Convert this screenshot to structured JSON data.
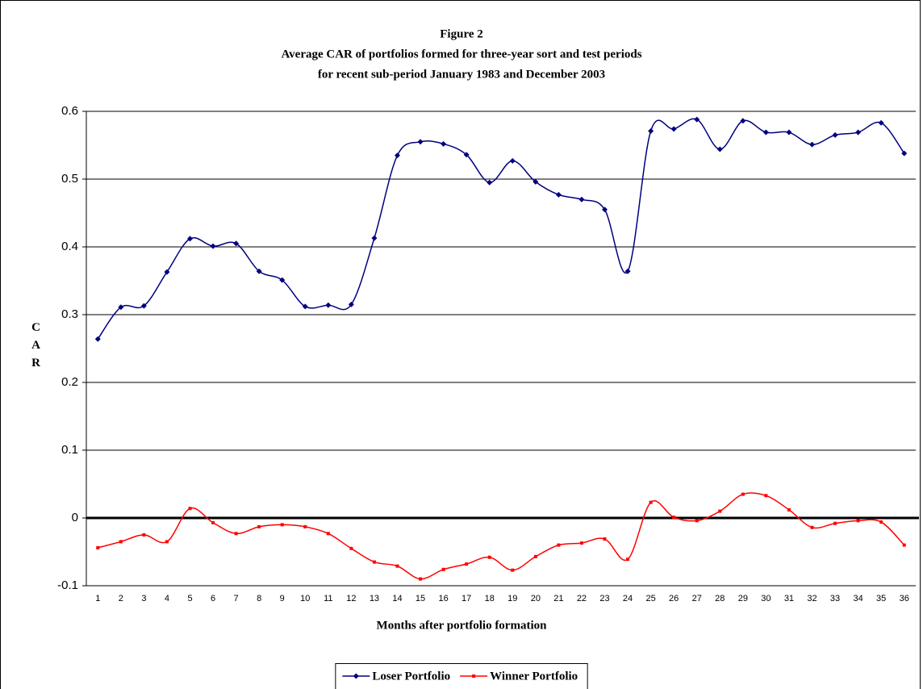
{
  "chart_data": {
    "type": "line",
    "title": "Figure 2",
    "subtitle": [
      "Average CAR of portfolios formed for three-year sort and test periods",
      "for recent sub-period January 1983 and December 2003"
    ],
    "x_label": "Months after portfolio formation",
    "y_label": "CAR",
    "categories": [
      "1",
      "2",
      "3",
      "4",
      "5",
      "6",
      "7",
      "8",
      "9",
      "10",
      "11",
      "12",
      "13",
      "14",
      "15",
      "16",
      "17",
      "18",
      "19",
      "20",
      "21",
      "22",
      "23",
      "24",
      "25",
      "26",
      "27",
      "28",
      "29",
      "30",
      "31",
      "32",
      "33",
      "34",
      "35",
      "36"
    ],
    "series": [
      {
        "name": "Loser Portfolio",
        "color": "#000080",
        "marker": "diamond",
        "values": [
          0.264,
          0.311,
          0.313,
          0.363,
          0.412,
          0.401,
          0.405,
          0.364,
          0.351,
          0.312,
          0.314,
          0.315,
          0.413,
          0.535,
          0.555,
          0.552,
          0.536,
          0.495,
          0.527,
          0.496,
          0.477,
          0.47,
          0.455,
          0.364,
          0.571,
          0.574,
          0.588,
          0.544,
          0.586,
          0.569,
          0.569,
          0.551,
          0.565,
          0.569,
          0.583,
          0.538
        ]
      },
      {
        "name": "Winner Portfolio",
        "color": "#ff0000",
        "marker": "square",
        "values": [
          -0.044,
          -0.035,
          -0.025,
          -0.035,
          0.014,
          -0.007,
          -0.023,
          -0.013,
          -0.01,
          -0.013,
          -0.023,
          -0.045,
          -0.065,
          -0.071,
          -0.09,
          -0.076,
          -0.068,
          -0.058,
          -0.077,
          -0.057,
          -0.04,
          -0.037,
          -0.031,
          -0.061,
          0.023,
          0.001,
          -0.004,
          0.01,
          0.035,
          0.033,
          0.012,
          -0.014,
          -0.008,
          -0.004,
          -0.006,
          -0.04
        ]
      }
    ],
    "ylim": [
      -0.1,
      0.6
    ],
    "yticks": [
      -0.1,
      0,
      0.1,
      0.2,
      0.3,
      0.4,
      0.5,
      0.6
    ],
    "grid": true,
    "smooth": true,
    "legend": "bottom"
  }
}
